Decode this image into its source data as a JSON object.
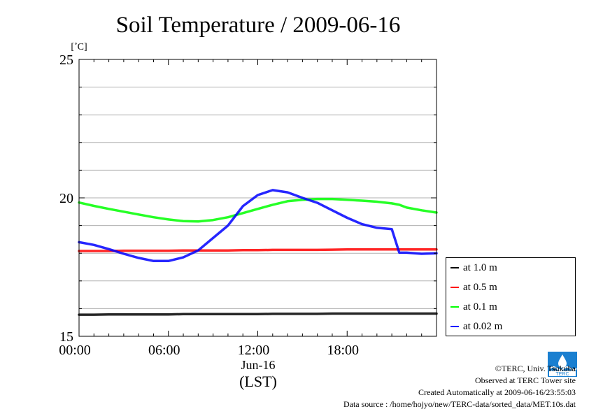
{
  "chart_data": {
    "type": "line",
    "title": "Soil Temperature / 2009-06-16",
    "ylabel": "[˚C]",
    "xlabel": "(LST)",
    "x_date_label": "Jun-16",
    "xlim": [
      0,
      24
    ],
    "ylim": [
      15,
      25
    ],
    "x_ticks": [
      {
        "value": 0,
        "label": "00:00"
      },
      {
        "value": 6,
        "label": "06:00"
      },
      {
        "value": 12,
        "label": "12:00"
      },
      {
        "value": 18,
        "label": "18:00"
      }
    ],
    "y_ticks": [
      {
        "value": 15,
        "label": "15"
      },
      {
        "value": 20,
        "label": "20"
      },
      {
        "value": 25,
        "label": "25"
      }
    ],
    "grid": true,
    "legend_position": "right-bottom-outside",
    "x": [
      0,
      1,
      2,
      3,
      4,
      5,
      6,
      7,
      8,
      9,
      10,
      11,
      12,
      13,
      14,
      15,
      16,
      17,
      18,
      19,
      20,
      21,
      21.5,
      22,
      23,
      24
    ],
    "series": [
      {
        "name": "at 1.0 m",
        "color": "#000000",
        "values": [
          15.78,
          15.78,
          15.79,
          15.79,
          15.79,
          15.79,
          15.79,
          15.8,
          15.8,
          15.8,
          15.8,
          15.8,
          15.8,
          15.81,
          15.81,
          15.81,
          15.81,
          15.82,
          15.82,
          15.82,
          15.82,
          15.82,
          15.82,
          15.82,
          15.82,
          15.82
        ]
      },
      {
        "name": "at 0.5 m",
        "color": "#ff0000",
        "values": [
          18.08,
          18.08,
          18.08,
          18.09,
          18.09,
          18.09,
          18.09,
          18.1,
          18.1,
          18.1,
          18.1,
          18.11,
          18.11,
          18.12,
          18.12,
          18.12,
          18.12,
          18.13,
          18.14,
          18.14,
          18.14,
          18.14,
          18.14,
          18.14,
          18.14,
          18.14
        ]
      },
      {
        "name": "at 0.1 m",
        "color": "#00ff00",
        "values": [
          19.83,
          19.71,
          19.6,
          19.5,
          19.4,
          19.3,
          19.22,
          19.16,
          19.15,
          19.2,
          19.3,
          19.45,
          19.6,
          19.75,
          19.88,
          19.93,
          19.96,
          19.96,
          19.93,
          19.9,
          19.86,
          19.8,
          19.75,
          19.65,
          19.55,
          19.47
        ]
      },
      {
        "name": "at 0.02 m",
        "color": "#0000ff",
        "values": [
          18.4,
          18.3,
          18.15,
          17.98,
          17.83,
          17.72,
          17.72,
          17.85,
          18.1,
          18.55,
          19.0,
          19.7,
          20.1,
          20.28,
          20.2,
          20.0,
          19.82,
          19.55,
          19.28,
          19.05,
          18.92,
          18.87,
          18.02,
          18.02,
          17.98,
          18.0
        ]
      }
    ]
  },
  "footer": {
    "copyright": "©TERC, Univ. Tsukuba",
    "observed": "Observed at TERC Tower site",
    "created": "Created Automatically at 2009-06-16/23:55:03",
    "source": "Data source : /home/hojyo/new/TERC-data/sorted_data/MET.10s.dat",
    "logo_text": "TERC"
  }
}
